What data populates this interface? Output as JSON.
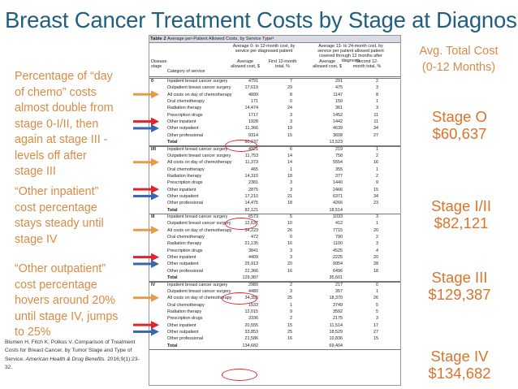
{
  "slide": {
    "title": "Breast Cancer Treatment Costs by Stage at Diagnosis",
    "notes": [
      "Percentage of “day of chemo” costs almost double from stage 0-I/II, then again at stage III - levels off after stage III",
      "“Other inpatient” cost percentage stays steady until stage IV",
      "“Other outpatient” cost percentage hovers around 20% until stage IV, jumps to 25%"
    ],
    "avg_label_line1": "Avg. Total Cost",
    "avg_label_line2": "(0-12 Months)",
    "stages": [
      {
        "name": "Stage O",
        "cost": "$60,637"
      },
      {
        "name": "Stage I/II",
        "cost": "$82,121"
      },
      {
        "name": "Stage III",
        "cost": "$129,387"
      },
      {
        "name": "Stage IV",
        "cost": "$134,682"
      }
    ],
    "citation": {
      "main": "Blumen H, Fitch K, Polkus V. Comparison of Treatment Costs for Breast Cancer, by Tumor Stage and Type of Service.",
      "journal": "American Health & Drug Benefits.",
      "tail": "2016;9(1):23-32."
    }
  },
  "table": {
    "label": "Table 2",
    "caption": "Average per-Patient Allowed Costs, by Service Typeᵃ",
    "group1": "Average 0- to 12-month cost, by service per diagnosed patient",
    "group2": "Average 13- to 24-month cost, by service per patient allowed patient covered through 12 months after diagnosis",
    "headers": [
      "Disease stage",
      "Category of service",
      "Average allowed cost, $",
      "First 12-month total, %",
      "Average allowed cost, $",
      "Second 12-month total, %"
    ],
    "rows": [
      {
        "stage": "0",
        "cat": "Inpatient breast cancer surgery",
        "c1": "4791",
        "c2": "7",
        "c3": "291",
        "c4": "2"
      },
      {
        "stage": "",
        "cat": "Outpatient breast cancer surgery",
        "c1": "17,619",
        "c2": "29",
        "c3": "475",
        "c4": "3"
      },
      {
        "stage": "",
        "cat": "All costs on day of chemotherapy",
        "c1": "4899",
        "c2": "8",
        "c3": "1147",
        "c4": "8"
      },
      {
        "stage": "",
        "cat": "Oral chemotherapy",
        "c1": "171",
        "c2": "0",
        "c3": "150",
        "c4": "1"
      },
      {
        "stage": "",
        "cat": "Radiation therapy",
        "c1": "14,474",
        "c2": "24",
        "c3": "361",
        "c4": "3"
      },
      {
        "stage": "",
        "cat": "Prescription drugs",
        "c1": "1717",
        "c2": "3",
        "c3": "1452",
        "c4": "11"
      },
      {
        "stage": "",
        "cat": "Other inpatient",
        "c1": "1928",
        "c2": "3",
        "c3": "1442",
        "c4": "11"
      },
      {
        "stage": "",
        "cat": "Other outpatient",
        "c1": "11,366",
        "c2": "19",
        "c3": "4639",
        "c4": "34"
      },
      {
        "stage": "",
        "cat": "Other professional",
        "c1": "9314",
        "c2": "15",
        "c3": "3608",
        "c4": "27"
      },
      {
        "stage": "",
        "cat": "Total",
        "c1": "60,637",
        "c2": "",
        "c3": "13,523",
        "c4": "",
        "total": true
      },
      {
        "stage": "I/II",
        "cat": "Inpatient breast cancer surgery",
        "c1": "4921",
        "c2": "6",
        "c3": "219",
        "c4": "1"
      },
      {
        "stage": "",
        "cat": "Outpatient breast cancer surgery",
        "c1": "11,753",
        "c2": "14",
        "c3": "758",
        "c4": "2"
      },
      {
        "stage": "",
        "cat": "All costs on day of chemotherapy",
        "c1": "11,373",
        "c2": "14",
        "c3": "5554",
        "c4": "16"
      },
      {
        "stage": "",
        "cat": "Oral chemotherapy",
        "c1": "465",
        "c2": "1",
        "c3": "355",
        "c4": "1"
      },
      {
        "stage": "",
        "cat": "Radiation therapy",
        "c1": "14,310",
        "c2": "18",
        "c3": "377",
        "c4": "2"
      },
      {
        "stage": "",
        "cat": "Prescription drugs",
        "c1": "2381",
        "c2": "3",
        "c3": "1440",
        "c4": "9"
      },
      {
        "stage": "",
        "cat": "Other inpatient",
        "c1": "2875",
        "c2": "3",
        "c3": "2466",
        "c4": "15"
      },
      {
        "stage": "",
        "cat": "Other outpatient",
        "c1": "17,210",
        "c2": "21",
        "c3": "6371",
        "c4": "34"
      },
      {
        "stage": "",
        "cat": "Other professional",
        "c1": "14,475",
        "c2": "18",
        "c3": "4266",
        "c4": "23"
      },
      {
        "stage": "",
        "cat": "Total",
        "c1": "82,121",
        "c2": "",
        "c3": "18,514",
        "c4": "",
        "total": true
      },
      {
        "stage": "III",
        "cat": "Inpatient breast cancer surgery",
        "c1": "6573",
        "c2": "5",
        "c3": "1033",
        "c4": "3"
      },
      {
        "stage": "",
        "cat": "Outpatient breast cancer surgery",
        "c1": "12,637",
        "c2": "10",
        "c3": "412",
        "c4": "1"
      },
      {
        "stage": "",
        "cat": "All costs on day of chemotherapy",
        "c1": "34,223",
        "c2": "26",
        "c3": "7715",
        "c4": "20"
      },
      {
        "stage": "",
        "cat": "Oral chemotherapy",
        "c1": "472",
        "c2": "0",
        "c3": "790",
        "c4": "2"
      },
      {
        "stage": "",
        "cat": "Radiation therapy",
        "c1": "21,135",
        "c2": "16",
        "c3": "1100",
        "c4": "3"
      },
      {
        "stage": "",
        "cat": "Prescription drugs",
        "c1": "3841",
        "c2": "3",
        "c3": "4525",
        "c4": "4"
      },
      {
        "stage": "",
        "cat": "Other inpatient",
        "c1": "4409",
        "c2": "3",
        "c3": "2225",
        "c4": "20"
      },
      {
        "stage": "",
        "cat": "Other outpatient",
        "c1": "25,913",
        "c2": "20",
        "c3": "9954",
        "c4": "28"
      },
      {
        "stage": "",
        "cat": "Other professional",
        "c1": "22,366",
        "c2": "16",
        "c3": "6496",
        "c4": "18"
      },
      {
        "stage": "",
        "cat": "Total",
        "c1": "129,387",
        "c2": "",
        "c3": "35,601",
        "c4": "",
        "total": true
      },
      {
        "stage": "IV",
        "cat": "Inpatient breast cancer surgery",
        "c1": "2980",
        "c2": "2",
        "c3": "217",
        "c4": "0"
      },
      {
        "stage": "",
        "cat": "Outpatient breast cancer surgery",
        "c1": "4480",
        "c2": "3",
        "c3": "357",
        "c4": "1"
      },
      {
        "stage": "",
        "cat": "All costs on day of chemotherapy",
        "c1": "34,355",
        "c2": "25",
        "c3": "18,370",
        "c4": "26"
      },
      {
        "stage": "",
        "cat": "Oral chemotherapy",
        "c1": "1533",
        "c2": "1",
        "c3": "3749",
        "c4": "5"
      },
      {
        "stage": "",
        "cat": "Radiation therapy",
        "c1": "12,015",
        "c2": "9",
        "c3": "3592",
        "c4": "5"
      },
      {
        "stage": "",
        "cat": "Prescription drugs",
        "c1": "3336",
        "c2": "2",
        "c3": "2175",
        "c4": "3"
      },
      {
        "stage": "",
        "cat": "Other inpatient",
        "c1": "20,555",
        "c2": "15",
        "c3": "11,514",
        "c4": "17"
      },
      {
        "stage": "",
        "cat": "Other outpatient",
        "c1": "33,853",
        "c2": "25",
        "c3": "18,529",
        "c4": "27"
      },
      {
        "stage": "",
        "cat": "Other professional",
        "c1": "21,586",
        "c2": "16",
        "c3": "10,836",
        "c4": "15"
      },
      {
        "stage": "",
        "cat": "Total",
        "c1": "134,682",
        "c2": "",
        "c3": "69,404",
        "c4": "",
        "total": true
      }
    ]
  },
  "colors": {
    "title": "#1f5f7f",
    "notes": "#d98b43",
    "stage_text": "#d9742c",
    "arrow_orange": "#e69a4a",
    "arrow_red": "#e0242a",
    "arrow_blue": "#3a66b0"
  }
}
